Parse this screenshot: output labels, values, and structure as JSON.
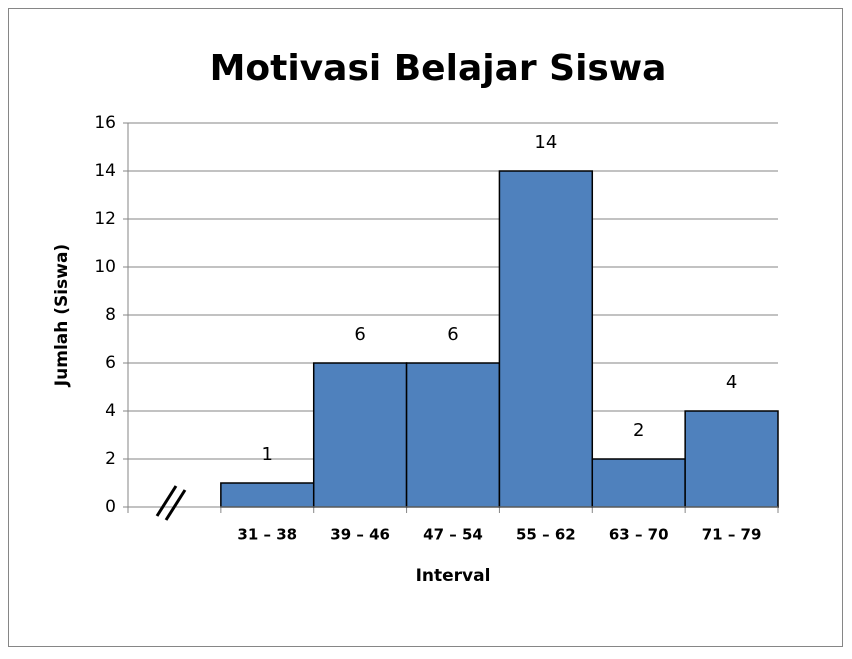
{
  "chart_data": {
    "type": "bar",
    "title": "Motivasi Belajar Siswa",
    "x_label": "Interval",
    "y_label": "Jumlah (Siswa)",
    "categories": [
      null,
      "31 – 38",
      "39 – 46",
      "47 – 54",
      "55 – 62",
      "63 – 70",
      "71 – 79"
    ],
    "values": [
      null,
      1,
      6,
      6,
      14,
      2,
      4
    ],
    "color": "#4f81bd",
    "ylim": [
      0,
      16
    ],
    "yticks": [
      0,
      2,
      4,
      6,
      8,
      10,
      12,
      14,
      16
    ],
    "grid": true
  }
}
